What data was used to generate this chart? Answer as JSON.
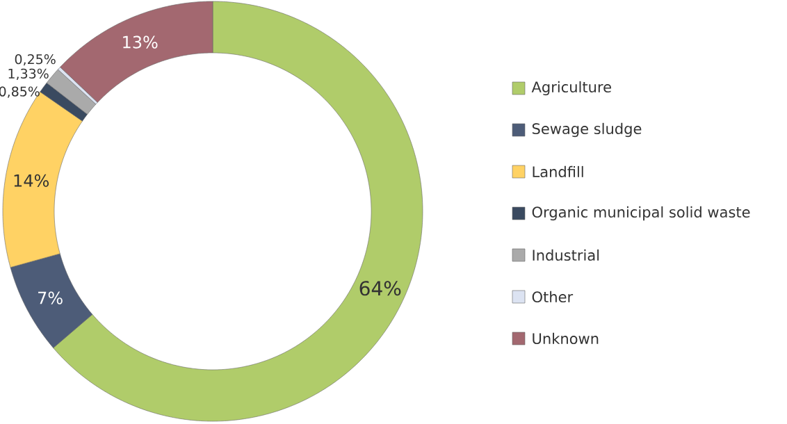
{
  "chart_data": {
    "type": "donut",
    "categories": [
      "Agriculture",
      "Sewage sludge",
      "Landfill",
      "Organic municipal solid waste",
      "Industrial",
      "Other",
      "Unknown"
    ],
    "values": [
      64,
      7,
      14,
      0.85,
      1.33,
      0.25,
      13
    ],
    "value_labels": [
      "64%",
      "7%",
      "14%",
      "0,85%",
      "1,33%",
      "0,25%",
      "13%"
    ],
    "colors": [
      "#b0cc6a",
      "#4d5c78",
      "#ffd264",
      "#3a4a60",
      "#aaaaaa",
      "#dce3f2",
      "#a36870"
    ],
    "legend": "right"
  }
}
